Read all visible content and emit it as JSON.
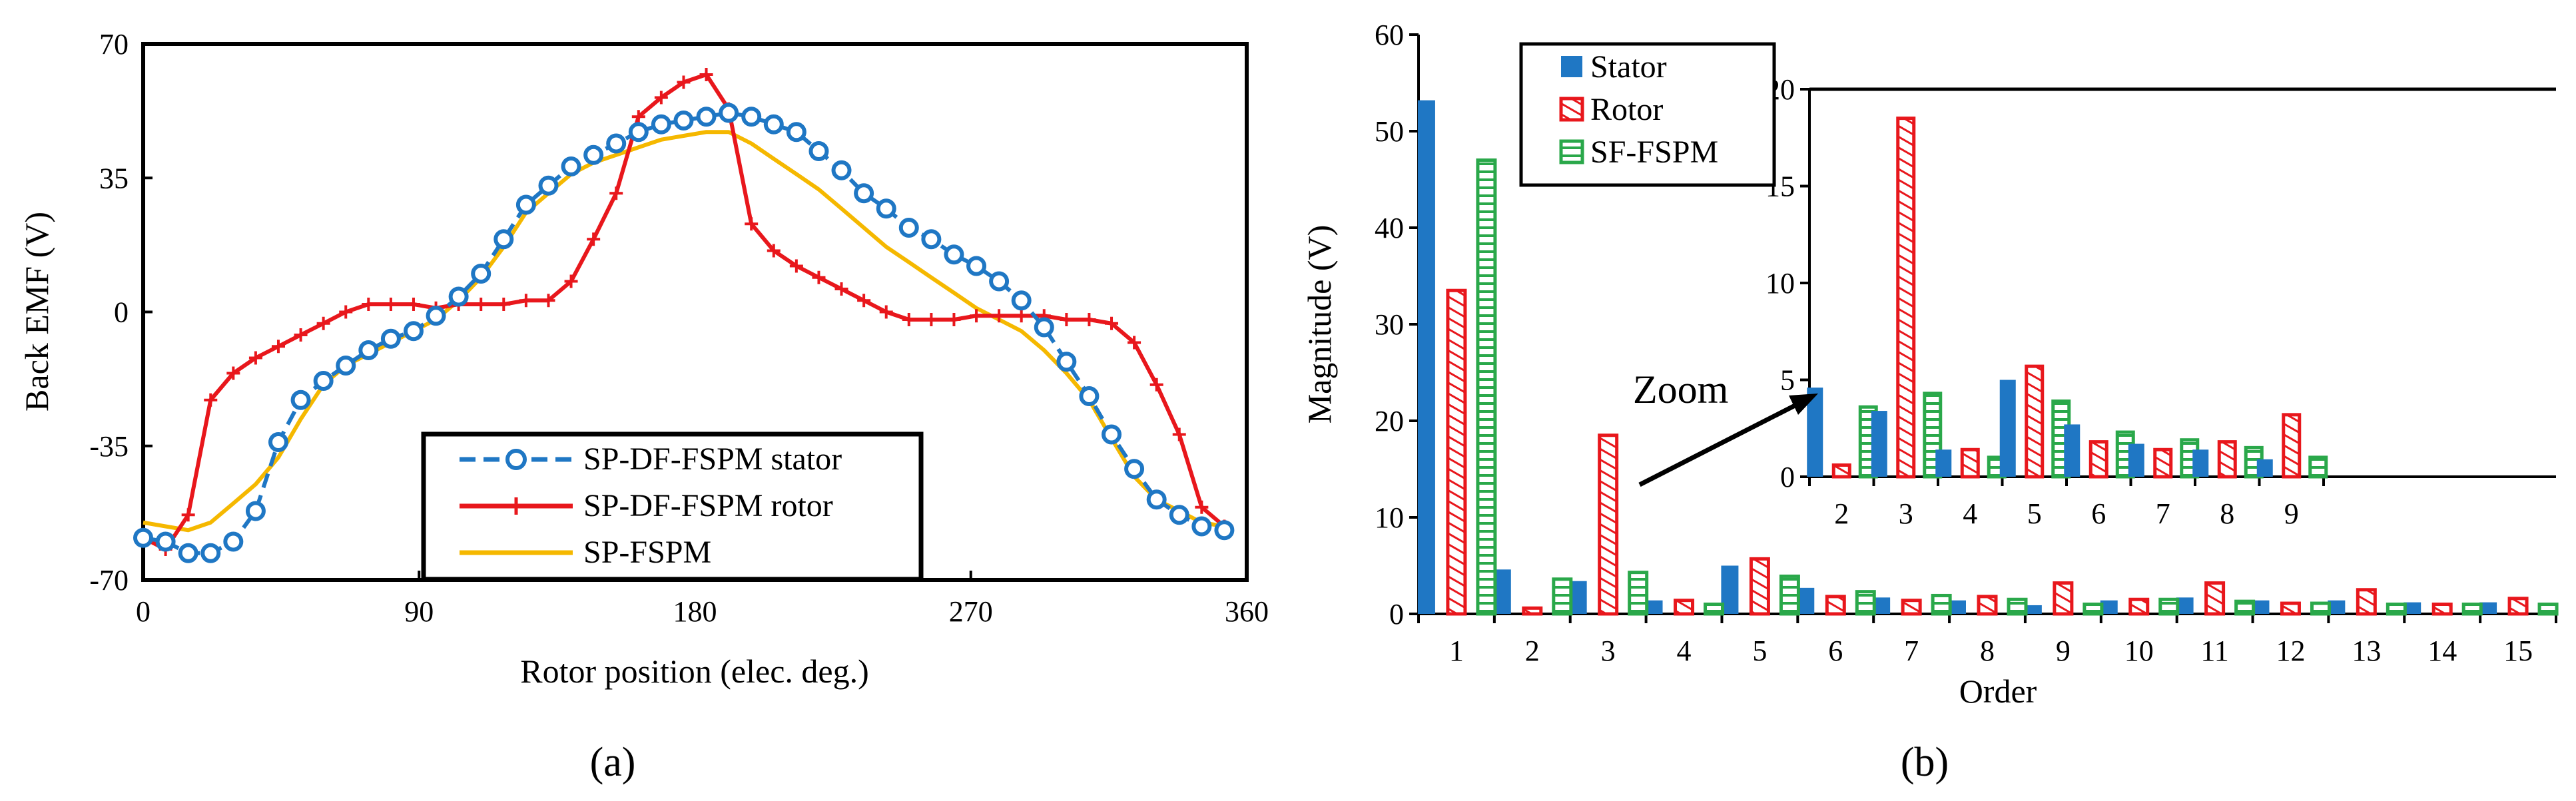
{
  "chart_data": [
    {
      "panel": "a",
      "type": "line",
      "xlabel": "Rotor position (elec. deg.)",
      "ylabel": "Back EMF (V)",
      "xlim": [
        0,
        360
      ],
      "ylim": [
        -70,
        70
      ],
      "xticks": [
        0,
        90,
        180,
        270,
        360
      ],
      "yticks": [
        -70,
        -35,
        0,
        35,
        70
      ],
      "legend_position": "bottom-right",
      "series": [
        {
          "name": "SP-DF-FSPM stator",
          "color": "#1f77c4",
          "style": "dashed-circles",
          "x": [
            0,
            7.3,
            14.7,
            22,
            29.4,
            36.7,
            44.1,
            51.4,
            58.8,
            66.1,
            73.5,
            80.8,
            88.2,
            95.5,
            102.9,
            110.2,
            117.6,
            124.9,
            132.2,
            139.6,
            146.9,
            154.3,
            161.6,
            169,
            176.3,
            183.7,
            191,
            198.4,
            205.7,
            213.1,
            220.4,
            227.8,
            235.1,
            242.4,
            249.8,
            257.1,
            264.5,
            271.8,
            279.2,
            286.5,
            293.9,
            301.2,
            308.6,
            315.9,
            323.3,
            330.6,
            338,
            345.3,
            352.7
          ],
          "y": [
            -59,
            -60,
            -63,
            -63,
            -60,
            -52,
            -34,
            -23,
            -18,
            -14,
            -10,
            -7,
            -5,
            -1,
            4,
            10,
            19,
            28,
            33,
            38,
            41,
            44,
            47,
            49,
            50,
            51,
            52,
            51,
            49,
            47,
            42,
            37,
            31,
            27,
            22,
            19,
            15,
            12,
            8,
            3,
            -4,
            -13,
            -22,
            -32,
            -41,
            -49,
            -53,
            -56,
            -57
          ]
        },
        {
          "name": "SP-DF-FSPM rotor",
          "color": "#e8171c",
          "style": "solid-plus",
          "x": [
            0,
            7.3,
            14.7,
            22,
            29.4,
            36.7,
            44.1,
            51.4,
            58.8,
            66.1,
            73.5,
            80.8,
            88.2,
            95.5,
            102.9,
            110.2,
            117.6,
            124.9,
            132.2,
            139.6,
            146.9,
            154.3,
            161.6,
            169,
            176.3,
            183.7,
            191,
            198.4,
            205.7,
            213.1,
            220.4,
            227.8,
            235.1,
            242.4,
            249.8,
            257.1,
            264.5,
            271.8,
            279.2,
            286.5,
            293.9,
            301.2,
            308.6,
            315.9,
            323.3,
            330.6,
            338,
            345.3,
            352.7
          ],
          "y": [
            -59,
            -62,
            -53,
            -23,
            -16,
            -12,
            -9,
            -6,
            -3,
            0,
            2,
            2,
            2,
            1,
            2,
            2,
            2,
            3,
            3,
            8,
            19,
            31,
            51,
            56,
            60,
            62,
            53,
            23,
            16,
            12,
            9,
            6,
            3,
            0,
            -2,
            -2,
            -2,
            -1,
            -1,
            -1,
            -1,
            -2,
            -2,
            -3,
            -8,
            -19,
            -32,
            -51,
            -56
          ]
        },
        {
          "name": "SP-FSPM",
          "color": "#f5b800",
          "style": "solid",
          "x": [
            0,
            7.3,
            14.7,
            22,
            29.4,
            36.7,
            44.1,
            51.4,
            58.8,
            66.1,
            73.5,
            80.8,
            88.2,
            95.5,
            102.9,
            110.2,
            117.6,
            124.9,
            132.2,
            139.6,
            146.9,
            154.3,
            161.6,
            169,
            176.3,
            183.7,
            191,
            198.4,
            205.7,
            213.1,
            220.4,
            227.8,
            235.1,
            242.4,
            249.8,
            257.1,
            264.5,
            271.8,
            279.2,
            286.5,
            293.9,
            301.2,
            308.6,
            315.9,
            323.3,
            330.6,
            338,
            345.3,
            352.7
          ],
          "y": [
            -55,
            -56,
            -57,
            -55,
            -50,
            -45,
            -38,
            -28,
            -19,
            -14,
            -11,
            -8,
            -5,
            -2,
            3,
            9,
            17,
            26,
            31,
            36,
            39,
            41,
            43,
            45,
            46,
            47,
            47,
            44,
            40,
            36,
            32,
            27,
            22,
            17,
            13,
            9,
            5,
            1,
            -2,
            -5,
            -10,
            -16,
            -23,
            -33,
            -43,
            -49,
            -52,
            -55,
            -56
          ]
        }
      ],
      "caption": "(a)"
    },
    {
      "panel": "b",
      "type": "bar",
      "xlabel": "Order",
      "ylabel": "Magnitude (V)",
      "ylim": [
        0,
        60
      ],
      "yticks": [
        0,
        10,
        20,
        30,
        40,
        50,
        60
      ],
      "categories": [
        "1",
        "2",
        "3",
        "4",
        "5",
        "6",
        "7",
        "8",
        "9",
        "10",
        "11",
        "12",
        "13",
        "14",
        "15"
      ],
      "legend_position": "top-left",
      "series": [
        {
          "name": "Stator",
          "color": "#1f77c4",
          "style": "solid",
          "values": [
            53.2,
            4.6,
            3.4,
            1.4,
            5.0,
            2.7,
            1.7,
            1.4,
            0.9,
            1.4,
            1.7,
            1.4,
            1.4,
            1.2,
            1.2
          ]
        },
        {
          "name": "Rotor",
          "color": "#e8171c",
          "style": "hatched",
          "values": [
            33.5,
            0.6,
            18.5,
            1.4,
            5.7,
            1.8,
            1.4,
            1.8,
            3.2,
            1.5,
            3.2,
            1.1,
            2.5,
            1.0,
            1.6
          ]
        },
        {
          "name": "SF-FSPM",
          "color": "#2aa84a",
          "style": "hatched",
          "values": [
            47.0,
            3.6,
            4.3,
            1.0,
            3.9,
            2.3,
            1.9,
            1.5,
            1.0,
            1.5,
            1.3,
            1.1,
            1.0,
            1.0,
            1.0
          ]
        }
      ],
      "inset": {
        "categories": [
          "2",
          "3",
          "4",
          "5",
          "6",
          "7",
          "8",
          "9"
        ],
        "ylim": [
          0,
          20
        ],
        "yticks": [
          0,
          5,
          10,
          15,
          20
        ]
      },
      "annotation": "Zoom",
      "caption": "(b)"
    }
  ]
}
